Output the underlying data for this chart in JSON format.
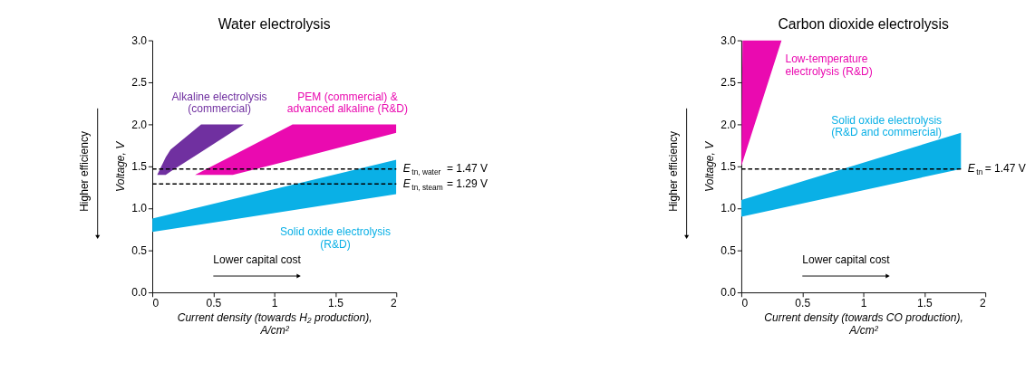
{
  "chart_data": [
    {
      "type": "area",
      "title": "Water electrolysis",
      "xlabel": "Current density (towards H₂ production),\nA/cm²",
      "ylabel": "Voltage, V",
      "xlim": [
        0,
        2
      ],
      "ylim": [
        0,
        3
      ],
      "xticks": [
        0,
        0.5,
        1,
        1.5,
        2
      ],
      "yticks": [
        {
          "value": 0,
          "label": "0.0"
        },
        {
          "value": 0.5,
          "label": "0.5"
        },
        {
          "value": 1,
          "label": "1.0"
        },
        {
          "value": 1.5,
          "label": "1.5"
        },
        {
          "value": 2,
          "label": "2.0"
        },
        {
          "value": 2.5,
          "label": "2.5"
        },
        {
          "value": 3,
          "label": "3.0"
        }
      ],
      "grid": false,
      "legend": false,
      "series": [
        {
          "name": "Alkaline electrolysis\n(commercial)",
          "color": "#7030a0",
          "x": [
            0.04,
            0.11,
            0.15,
            0.4,
            0.75
          ],
          "values": [
            null,
            null,
            null,
            null,
            null
          ],
          "upper": [
            1.4,
            1.61,
            1.7,
            2.0,
            2.0
          ],
          "lower": [
            1.4,
            1.4,
            1.44,
            1.67,
            2.0
          ]
        },
        {
          "name": "PEM (commercial) &\nadvanced alkaline (R&D)",
          "color": "#ea0ab0",
          "x": [
            0.35,
            0.66,
            1.15,
            2.0
          ],
          "values": [
            null,
            null,
            null,
            null
          ],
          "upper": [
            1.4,
            1.63,
            2.0,
            2.0
          ],
          "lower": [
            1.4,
            1.4,
            1.58,
            1.9
          ]
        },
        {
          "name": "Solid oxide electrolysis\n(R&D)",
          "color": "#0ab0e6",
          "x": [
            0,
            2
          ],
          "values": [
            null,
            null
          ],
          "upper": [
            0.88,
            1.58
          ],
          "lower": [
            0.72,
            1.17
          ]
        }
      ],
      "ref_lines": [
        {
          "axis": "y",
          "value": 1.47,
          "label": "E$_{tn, water}$ = 1.47 V",
          "color": "#000000",
          "line_style": "dashed"
        },
        {
          "axis": "y",
          "value": 1.29,
          "label": "E$_{tn, steam}$ = 1.29 V",
          "color": "#000000",
          "line_style": "dashed"
        }
      ],
      "annotations": [
        "Higher efficiency",
        "Lower capital cost"
      ]
    },
    {
      "type": "area",
      "title": "Carbon dioxide electrolysis",
      "xlabel": "Current density (towards CO production),\nA/cm²",
      "ylabel": "Voltage, V",
      "xlim": [
        0,
        2
      ],
      "ylim": [
        0,
        3
      ],
      "xticks": [
        0,
        0.5,
        1,
        1.5,
        2
      ],
      "yticks": [
        {
          "value": 0,
          "label": "0.0"
        },
        {
          "value": 0.5,
          "label": "0.5"
        },
        {
          "value": 1,
          "label": "1.0"
        },
        {
          "value": 1.5,
          "label": "1.5"
        },
        {
          "value": 2,
          "label": "2.0"
        },
        {
          "value": 2.5,
          "label": "2.5"
        },
        {
          "value": 3,
          "label": "3.0"
        }
      ],
      "grid": false,
      "legend": false,
      "series": [
        {
          "name": "Low-temperature\nelectrolysis (R&D)",
          "color": "#ea0ab0",
          "x": [
            0,
            0.01,
            0.33
          ],
          "values": [
            null,
            null,
            null
          ],
          "upper": [
            1.5,
            3.0,
            3.0
          ],
          "lower": [
            1.5,
            1.55,
            3.0
          ]
        },
        {
          "name": "Solid oxide electrolysis\n(R&D and commercial)",
          "color": "#0ab0e6",
          "x": [
            0,
            1.8
          ],
          "values": [
            null,
            null
          ],
          "upper": [
            1.1,
            1.9
          ],
          "lower": [
            0.9,
            1.47
          ]
        }
      ],
      "ref_lines": [
        {
          "axis": "y",
          "value": 1.47,
          "label": "E$_{tn}$ = 1.47 V",
          "color": "#000000",
          "line_style": "dashed"
        }
      ],
      "annotations": [
        "Higher efficiency",
        "Lower capital cost"
      ]
    }
  ]
}
